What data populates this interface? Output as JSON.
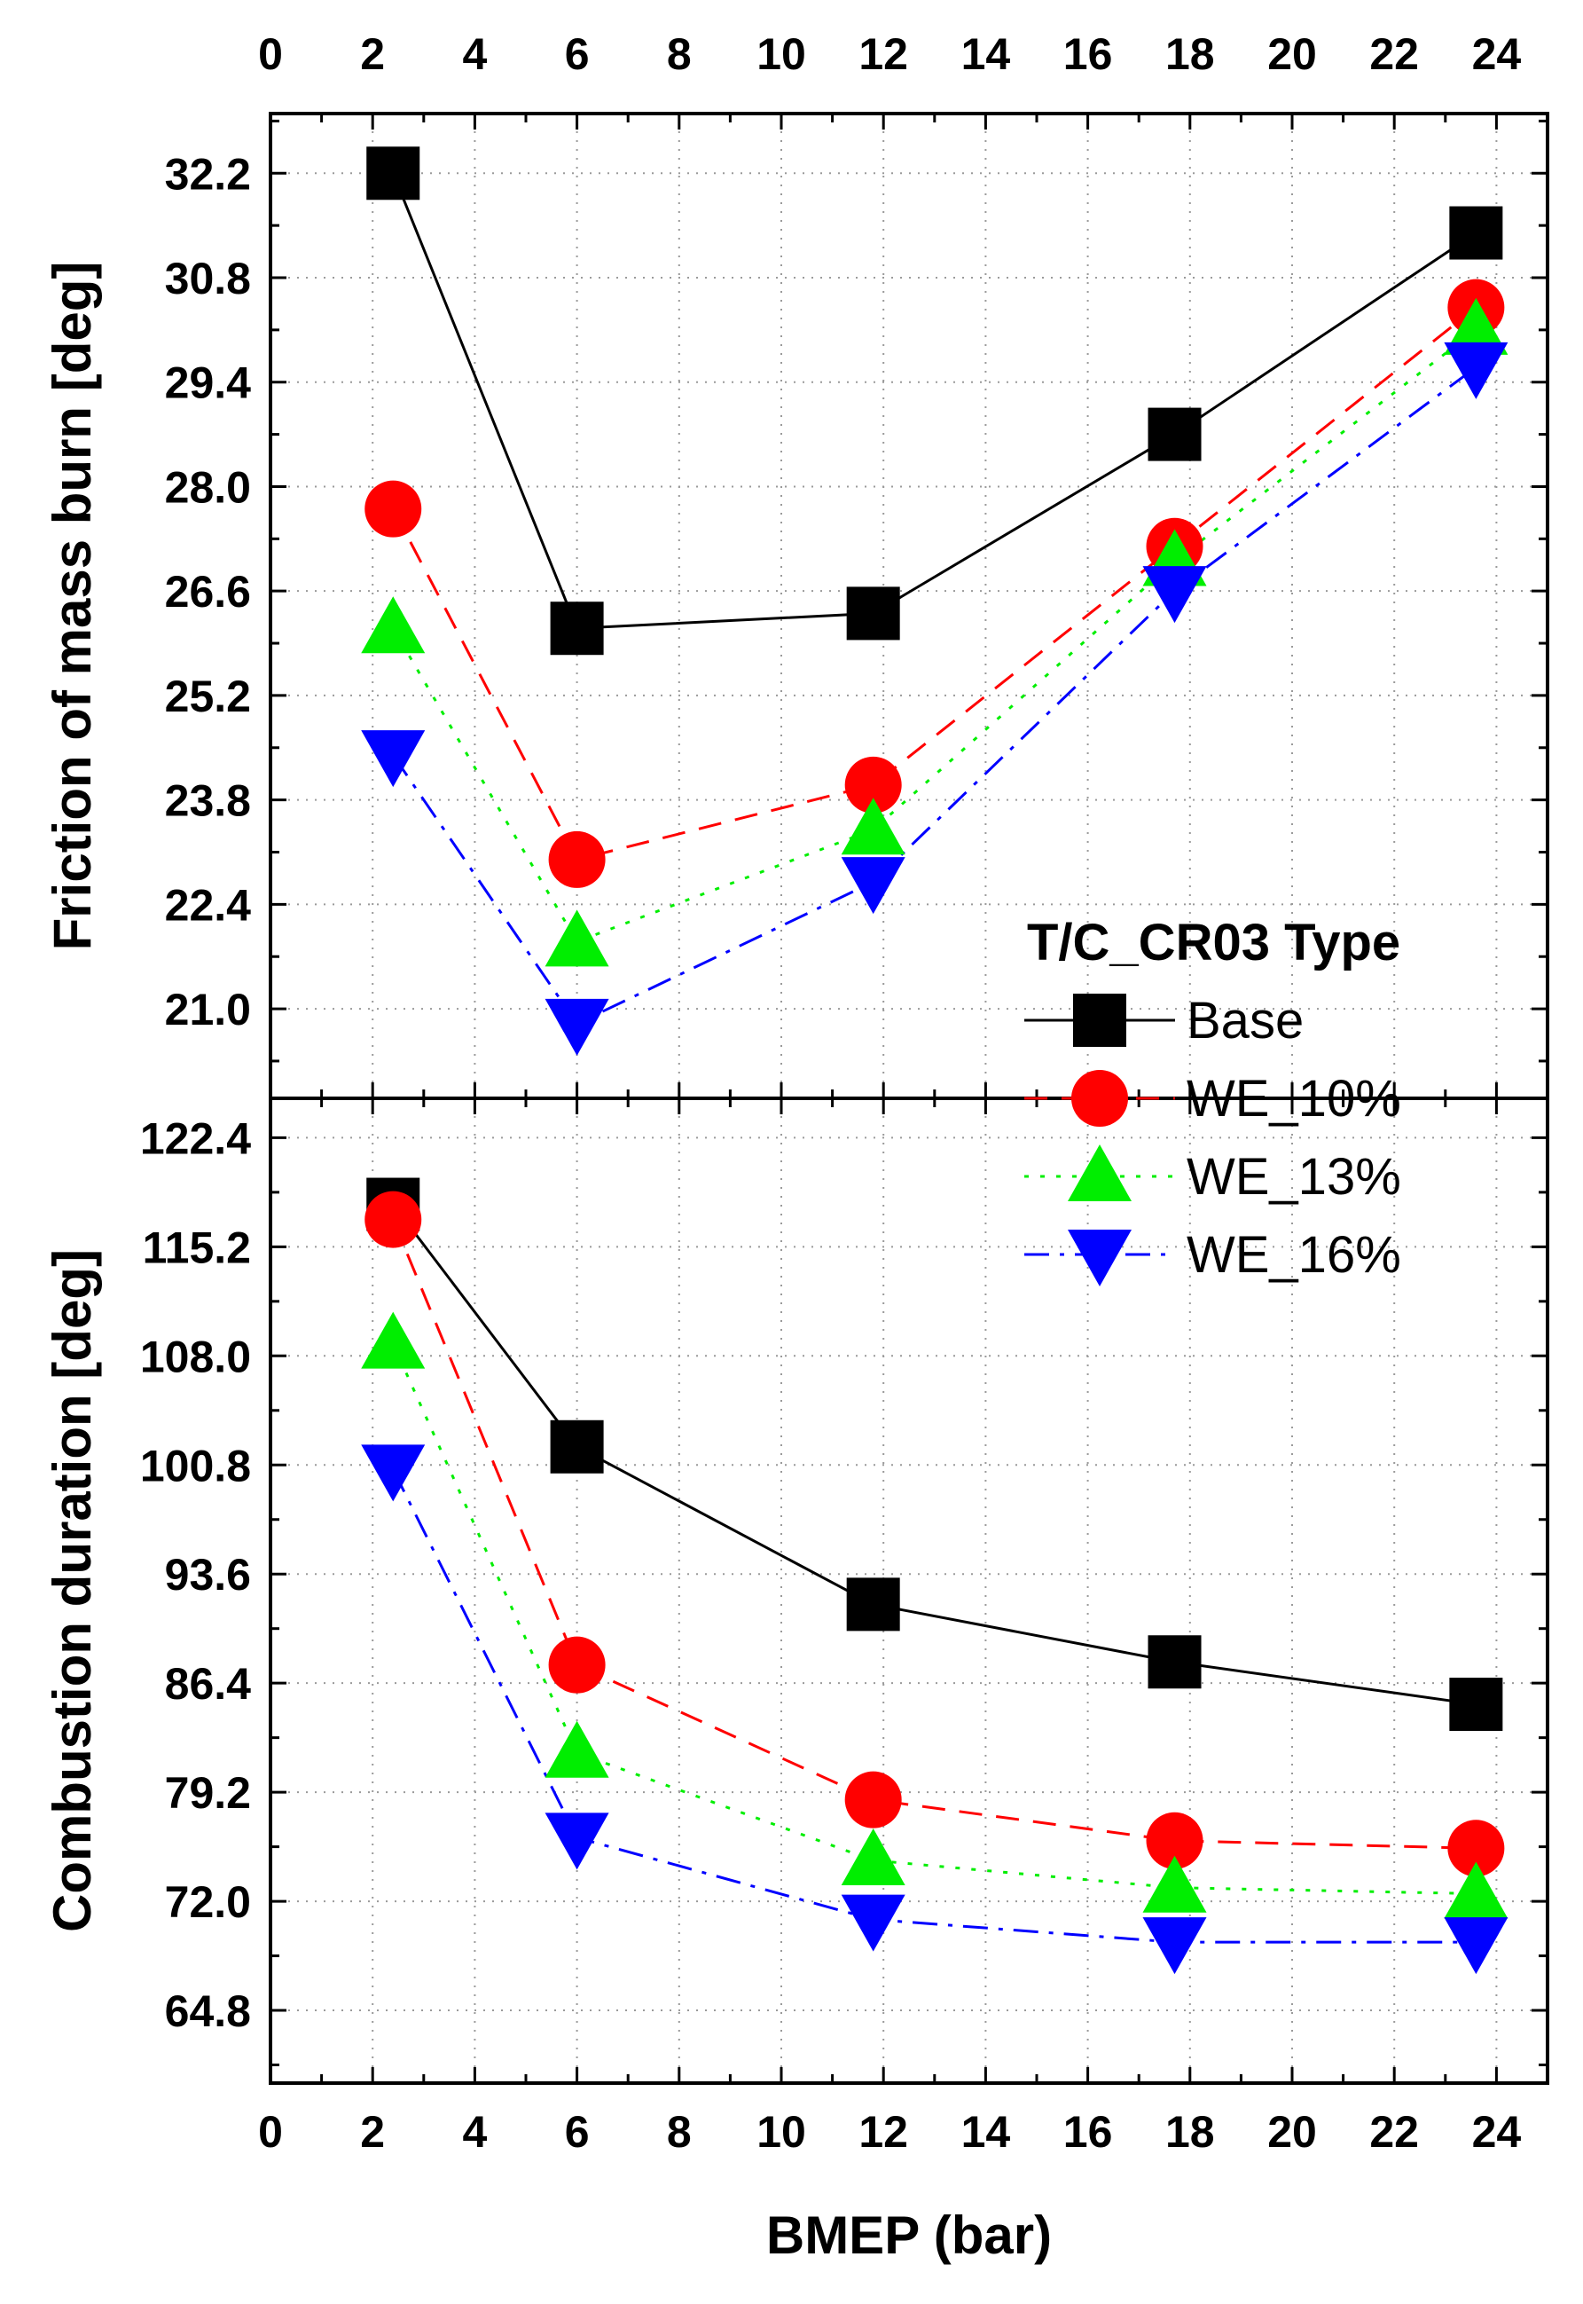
{
  "chart_data": {
    "type": "line",
    "x_label": "BMEP (bar)",
    "x_range": [
      0,
      25
    ],
    "x_ticks": [
      0,
      2,
      4,
      6,
      8,
      10,
      12,
      14,
      16,
      18,
      20,
      22,
      24
    ],
    "x_values": [
      2.4,
      6.0,
      11.8,
      17.7,
      23.6
    ],
    "legend": {
      "title": "T/C_CR03 Type",
      "position": "right, between panels"
    },
    "series_styles": [
      {
        "name": "Base",
        "color": "#000000",
        "marker": "square",
        "dash": "solid"
      },
      {
        "name": "WE_10%",
        "color": "#ff0000",
        "marker": "circle",
        "dash": "dashed"
      },
      {
        "name": "WE_13%",
        "color": "#00ee00",
        "marker": "triangle-up",
        "dash": "dotted"
      },
      {
        "name": "WE_16%",
        "color": "#0000ff",
        "marker": "triangle-down",
        "dash": "dash-dot"
      }
    ],
    "panels": [
      {
        "id": "top",
        "ylabel": "Friction of mass burn [deg]",
        "y_range": [
          19.8,
          33.0
        ],
        "y_ticks": [
          "21.0",
          "22.4",
          "23.8",
          "25.2",
          "26.6",
          "28.0",
          "29.4",
          "30.8",
          "32.2"
        ],
        "series": [
          {
            "name": "Base",
            "values": [
              32.2,
              26.1,
              26.3,
              28.7,
              31.4
            ]
          },
          {
            "name": "WE_10%",
            "values": [
              27.7,
              23.0,
              24.0,
              27.2,
              30.4
            ]
          },
          {
            "name": "WE_13%",
            "values": [
              26.1,
              21.9,
              23.4,
              27.0,
              30.1
            ]
          },
          {
            "name": "WE_16%",
            "values": [
              24.4,
              20.8,
              22.7,
              26.6,
              29.6
            ]
          }
        ]
      },
      {
        "id": "bottom",
        "ylabel": "Combustion duration [deg]",
        "y_range": [
          60.0,
          125.0
        ],
        "y_ticks": [
          "64.8",
          "72.0",
          "79.2",
          "86.4",
          "93.6",
          "100.8",
          "108.0",
          "115.2",
          "122.4"
        ],
        "series": [
          {
            "name": "Base",
            "values": [
              118.0,
              102.0,
              91.6,
              87.8,
              85.0
            ]
          },
          {
            "name": "WE_10%",
            "values": [
              117.0,
              87.6,
              78.7,
              76.0,
              75.5
            ]
          },
          {
            "name": "WE_13%",
            "values": [
              108.8,
              81.8,
              74.7,
              72.9,
              72.5
            ]
          },
          {
            "name": "WE_16%",
            "values": [
              100.5,
              76.2,
              70.8,
              69.3,
              69.3
            ]
          }
        ]
      }
    ]
  }
}
